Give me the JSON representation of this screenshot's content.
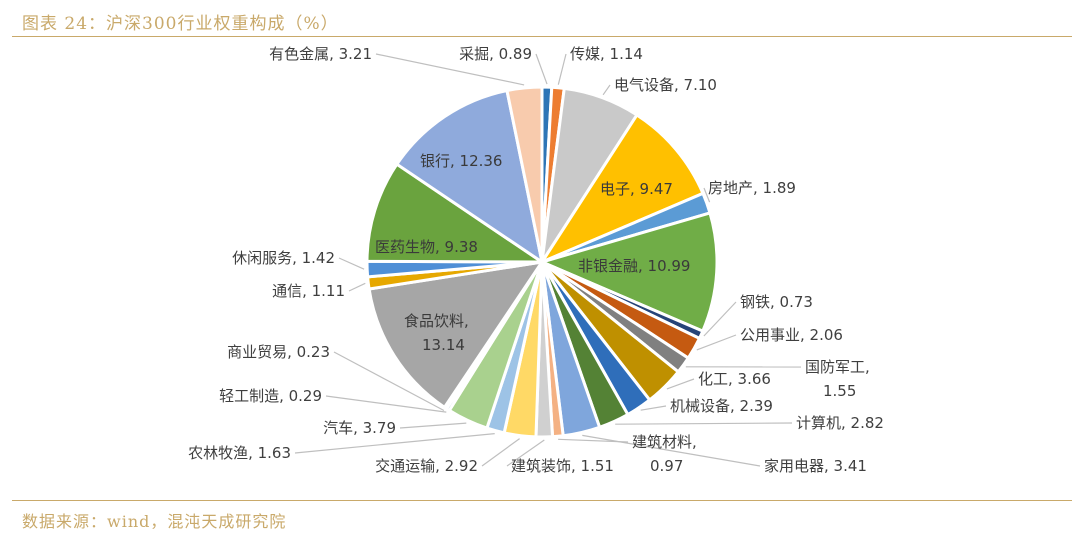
{
  "title": "图表 24：沪深300行业权重构成（%）",
  "source": "数据来源：wind，混沌天成研究院",
  "chart_data": {
    "type": "pie",
    "slices": [
      {
        "name": "采掘",
        "value": 0.89,
        "color": "#2e75b6",
        "label": "采掘, 0.89"
      },
      {
        "name": "传媒",
        "value": 1.14,
        "color": "#ed7d31",
        "label": "传媒, 1.14"
      },
      {
        "name": "电气设备",
        "value": 7.1,
        "color": "#c9c9c9",
        "label": "电气设备, 7.10"
      },
      {
        "name": "电子",
        "value": 9.47,
        "color": "#ffc000",
        "label": "电子, 9.47"
      },
      {
        "name": "房地产",
        "value": 1.89,
        "color": "#5b9bd5",
        "label": "房地产, 1.89"
      },
      {
        "name": "非银金融",
        "value": 10.99,
        "color": "#70ad47",
        "label": "非银金融, 10.99"
      },
      {
        "name": "钢铁",
        "value": 0.73,
        "color": "#264478",
        "label": "钢铁, 0.73"
      },
      {
        "name": "公用事业",
        "value": 2.06,
        "color": "#c55a11",
        "label": "公用事业, 2.06"
      },
      {
        "name": "国防军工",
        "value": 1.55,
        "color": "#808080",
        "label": "国防军工, 1.55"
      },
      {
        "name": "化工",
        "value": 3.66,
        "color": "#bf9000",
        "label": "化工, 3.66"
      },
      {
        "name": "机械设备",
        "value": 2.39,
        "color": "#2f6eba",
        "label": "机械设备, 2.39"
      },
      {
        "name": "计算机",
        "value": 2.82,
        "color": "#548235",
        "label": "计算机, 2.82"
      },
      {
        "name": "家用电器",
        "value": 3.41,
        "color": "#7fa6dc",
        "label": "家用电器, 3.41"
      },
      {
        "name": "建筑材料",
        "value": 0.97,
        "color": "#f4b183",
        "label": "建筑材料, 0.97"
      },
      {
        "name": "建筑装饰",
        "value": 1.51,
        "color": "#d0d0d0",
        "label": "建筑装饰, 1.51"
      },
      {
        "name": "交通运输",
        "value": 2.92,
        "color": "#ffd966",
        "label": "交通运输, 2.92"
      },
      {
        "name": "农林牧渔",
        "value": 1.63,
        "color": "#9dc3e6",
        "label": "农林牧渔, 1.63"
      },
      {
        "name": "汽车",
        "value": 3.79,
        "color": "#a9d18e",
        "label": "汽车, 3.79"
      },
      {
        "name": "轻工制造",
        "value": 0.29,
        "color": "#3a6ea5",
        "label": "轻工制造, 0.29"
      },
      {
        "name": "商业贸易",
        "value": 0.23,
        "color": "#c65911",
        "label": "商业贸易, 0.23"
      },
      {
        "name": "食品饮料",
        "value": 13.14,
        "color": "#a6a6a6",
        "label": "食品饮料, 13.14"
      },
      {
        "name": "通信",
        "value": 1.11,
        "color": "#e6a800",
        "label": "通信, 1.11"
      },
      {
        "name": "休闲服务",
        "value": 1.42,
        "color": "#4f8fd6",
        "label": "休闲服务, 1.42"
      },
      {
        "name": "医药生物",
        "value": 9.38,
        "color": "#6aa33e",
        "label": "医药生物, 9.38"
      },
      {
        "name": "银行",
        "value": 12.36,
        "color": "#8faadc",
        "label": "银行, 12.36"
      },
      {
        "name": "有色金属",
        "value": 3.21,
        "color": "#f8cbad",
        "label": "有色金属, 3.21"
      }
    ]
  }
}
